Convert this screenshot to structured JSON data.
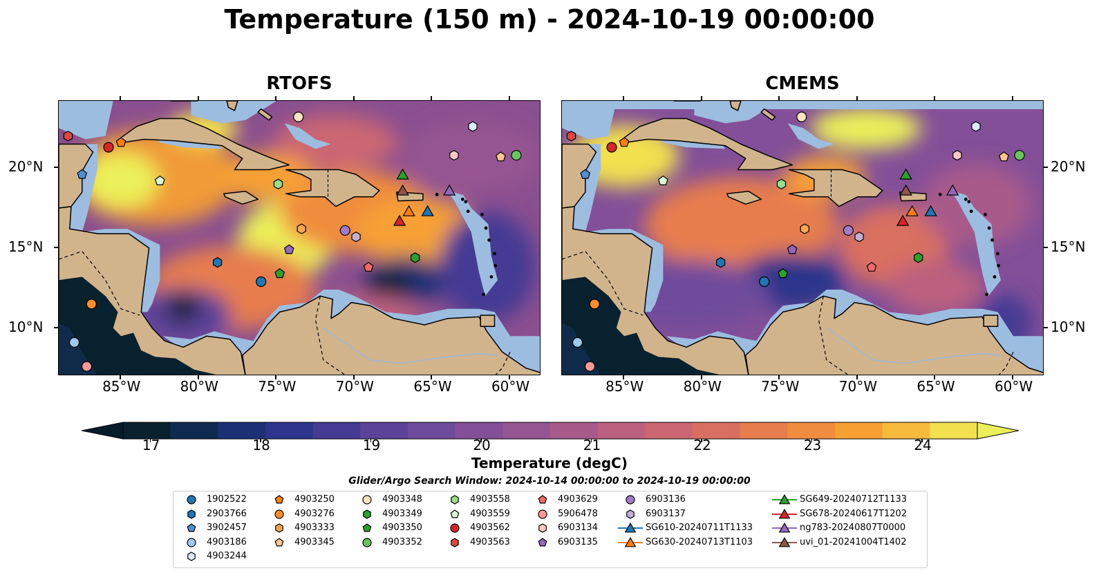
{
  "title": "Temperature (150 m) - 2024-10-19 00:00:00",
  "panels": [
    {
      "id": "left",
      "title": "RTOFS"
    },
    {
      "id": "right",
      "title": "CMEMS"
    }
  ],
  "map": {
    "lon_range": [
      -89,
      -58
    ],
    "lat_range": [
      7,
      24.2
    ],
    "lat_ticks": [
      {
        "value": 20,
        "label": "20°N"
      },
      {
        "value": 15,
        "label": "15°N"
      },
      {
        "value": 10,
        "label": "10°N"
      }
    ],
    "lon_ticks": [
      {
        "value": -85,
        "label": "85°W"
      },
      {
        "value": -80,
        "label": "80°W"
      },
      {
        "value": -75,
        "label": "75°W"
      },
      {
        "value": -70,
        "label": "70°W"
      },
      {
        "value": -65,
        "label": "65°W"
      },
      {
        "value": -60,
        "label": "60°W"
      }
    ]
  },
  "colorbar": {
    "min": 16.75,
    "max": 24.5,
    "step": 0.5,
    "ticks": [
      17,
      18,
      19,
      20,
      21,
      22,
      23,
      24
    ],
    "label": "Temperature (degC)",
    "colors": [
      "#08212f",
      "#0f2a50",
      "#1c3076",
      "#2c358b",
      "#453a94",
      "#5c4399",
      "#6f4c9b",
      "#834f98",
      "#955592",
      "#a85a8a",
      "#bb607f",
      "#cb6672",
      "#d96f60",
      "#e77d4d",
      "#f08c3e",
      "#f6a034",
      "#f8ba3c",
      "#f2e04f"
    ],
    "over_color": "#ebf05a",
    "under_color": "#061c2a"
  },
  "legend": {
    "title": "Glider/Argo Search Window: 2024-10-14 00:00:00 to 2024-10-19 00:00:00",
    "items": [
      {
        "label": "1902522",
        "marker": "circle",
        "color": "#1f77b4"
      },
      {
        "label": "2903766",
        "marker": "hexagon",
        "color": "#1f77b4"
      },
      {
        "label": "3902457",
        "marker": "pentagon",
        "color": "#4f8fd0"
      },
      {
        "label": "4903186",
        "marker": "circle",
        "color": "#9ec8ec"
      },
      {
        "label": "4903244",
        "marker": "hexagon",
        "color": "#dcebfa"
      },
      {
        "label": "4903250",
        "marker": "pentagon",
        "color": "#ff7f0e"
      },
      {
        "label": "4903276",
        "marker": "circle",
        "color": "#ff8c26"
      },
      {
        "label": "4903333",
        "marker": "hexagon",
        "color": "#ffa550"
      },
      {
        "label": "4903345",
        "marker": "pentagon",
        "color": "#ffc68a"
      },
      {
        "label": "4903348",
        "marker": "circle",
        "color": "#ffe3c2"
      },
      {
        "label": "4903349",
        "marker": "hexagon",
        "color": "#2ca02c"
      },
      {
        "label": "4903350",
        "marker": "pentagon",
        "color": "#2ca02c"
      },
      {
        "label": "4903352",
        "marker": "circle",
        "color": "#66c45a"
      },
      {
        "label": "4903558",
        "marker": "hexagon",
        "color": "#98df8a"
      },
      {
        "label": "4903559",
        "marker": "pentagon",
        "color": "#dcf7d4"
      },
      {
        "label": "4903562",
        "marker": "circle",
        "color": "#d62728"
      },
      {
        "label": "4903563",
        "marker": "hexagon",
        "color": "#e0463d"
      },
      {
        "label": "4903629",
        "marker": "pentagon",
        "color": "#f06a6a"
      },
      {
        "label": "5906478",
        "marker": "circle",
        "color": "#ff9896"
      },
      {
        "label": "6903134",
        "marker": "hexagon",
        "color": "#ffc9c8"
      },
      {
        "label": "6903135",
        "marker": "pentagon",
        "color": "#9467bd"
      },
      {
        "label": "6903136",
        "marker": "circle",
        "color": "#a07cc8"
      },
      {
        "label": "6903137",
        "marker": "hexagon",
        "color": "#c5b0d5"
      },
      {
        "label": "SG610-20240711T1133",
        "marker": "triangle",
        "color": "#1f77b4"
      },
      {
        "label": "SG630-20240713T1103",
        "marker": "triangle",
        "color": "#ff7f0e"
      },
      {
        "label": "SG649-20240712T1133",
        "marker": "triangle",
        "color": "#2ca02c"
      },
      {
        "label": "SG678-20240617T1202",
        "marker": "triangle",
        "color": "#d62728"
      },
      {
        "label": "ng783-20240807T0000",
        "marker": "triangle",
        "color": "#9467bd"
      },
      {
        "label": "uvi_01-20241004T1402",
        "marker": "triangle",
        "color": "#8c564b"
      }
    ]
  },
  "argo_positions": [
    {
      "id": "1902522",
      "lon": -76.0,
      "lat": 12.9
    },
    {
      "id": "2903766",
      "lon": -78.8,
      "lat": 14.1
    },
    {
      "id": "3902457",
      "lon": -87.5,
      "lat": 19.6
    },
    {
      "id": "4903186",
      "lon": -88.0,
      "lat": 9.1
    },
    {
      "id": "4903244",
      "lon": -62.4,
      "lat": 22.6
    },
    {
      "id": "4903250",
      "lon": -85.0,
      "lat": 21.6
    },
    {
      "id": "4903276",
      "lon": -86.9,
      "lat": 11.5
    },
    {
      "id": "4903333",
      "lon": -73.4,
      "lat": 16.2
    },
    {
      "id": "4903345",
      "lon": -60.6,
      "lat": 20.7
    },
    {
      "id": "4903348",
      "lon": -73.6,
      "lat": 23.2
    },
    {
      "id": "4903349",
      "lon": -66.1,
      "lat": 14.4
    },
    {
      "id": "4903350",
      "lon": -74.8,
      "lat": 13.4
    },
    {
      "id": "4903352",
      "lon": -59.6,
      "lat": 20.8
    },
    {
      "id": "4903558",
      "lon": -74.9,
      "lat": 19.0
    },
    {
      "id": "4903559",
      "lon": -82.5,
      "lat": 19.2
    },
    {
      "id": "4903562",
      "lon": -85.8,
      "lat": 21.3
    },
    {
      "id": "4903563",
      "lon": -88.4,
      "lat": 22.0
    },
    {
      "id": "4903629",
      "lon": -69.1,
      "lat": 13.8
    },
    {
      "id": "5906478",
      "lon": -87.2,
      "lat": 7.6
    },
    {
      "id": "6903134",
      "lon": -63.6,
      "lat": 20.8
    },
    {
      "id": "6903135",
      "lon": -74.2,
      "lat": 14.9
    },
    {
      "id": "6903136",
      "lon": -70.6,
      "lat": 16.1
    },
    {
      "id": "6903137",
      "lon": -69.9,
      "lat": 15.7
    }
  ],
  "glider_positions": [
    {
      "id": "SG610-20240711T1133",
      "lon": -65.3,
      "lat": 17.3
    },
    {
      "id": "SG630-20240713T1103",
      "lon": -66.5,
      "lat": 17.3
    },
    {
      "id": "SG649-20240712T1133",
      "lon": -66.9,
      "lat": 19.6
    },
    {
      "id": "SG678-20240617T1202",
      "lon": -67.1,
      "lat": 16.7
    },
    {
      "id": "ng783-20240807T0000",
      "lon": -63.9,
      "lat": 18.6
    },
    {
      "id": "uvi_01-20241004T1402",
      "lon": -66.9,
      "lat": 18.6
    }
  ]
}
